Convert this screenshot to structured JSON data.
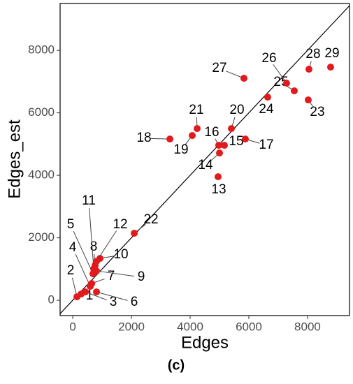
{
  "chart_data": {
    "type": "scatter",
    "x_label": "Edges",
    "y_label": "Edges_est",
    "caption": "(c)",
    "series": [
      {
        "color": "#e31a1c",
        "labels": [
          "1",
          "2",
          "3",
          "4",
          "5",
          "6",
          "7",
          "8",
          "9",
          "10",
          "11",
          "12",
          "13",
          "14",
          "15",
          "16",
          "17",
          "18",
          "19",
          "20",
          "21",
          "22",
          "23",
          "24",
          "25",
          "26",
          "27",
          "28",
          "29"
        ],
        "x": [
          286,
          143,
          429,
          595,
          690,
          810,
          643,
          762,
          810,
          929,
          714,
          810,
          4952,
          5000,
          5167,
          4976,
          5881,
          3310,
          4071,
          5405,
          4238,
          2095,
          8024,
          6643,
          7548,
          7286,
          5833,
          8048,
          8786
        ],
        "values": [
          201,
          112,
          268,
          447,
          849,
          268,
          536,
          1117,
          939,
          1341,
          1006,
          1251,
          3955,
          4715,
          4961,
          4961,
          5162,
          5162,
          5274,
          5497,
          5497,
          2145,
          6413,
          6503,
          6704,
          6950,
          7106,
          7397,
          7464
        ]
      }
    ],
    "xlim": [
      -430,
      9430
    ],
    "ylim": [
      -490,
      9500
    ],
    "xticks": [
      0,
      2000,
      4000,
      6000,
      8000
    ],
    "yticks": [
      0,
      2000,
      4000,
      6000,
      8000
    ],
    "grid": false
  }
}
